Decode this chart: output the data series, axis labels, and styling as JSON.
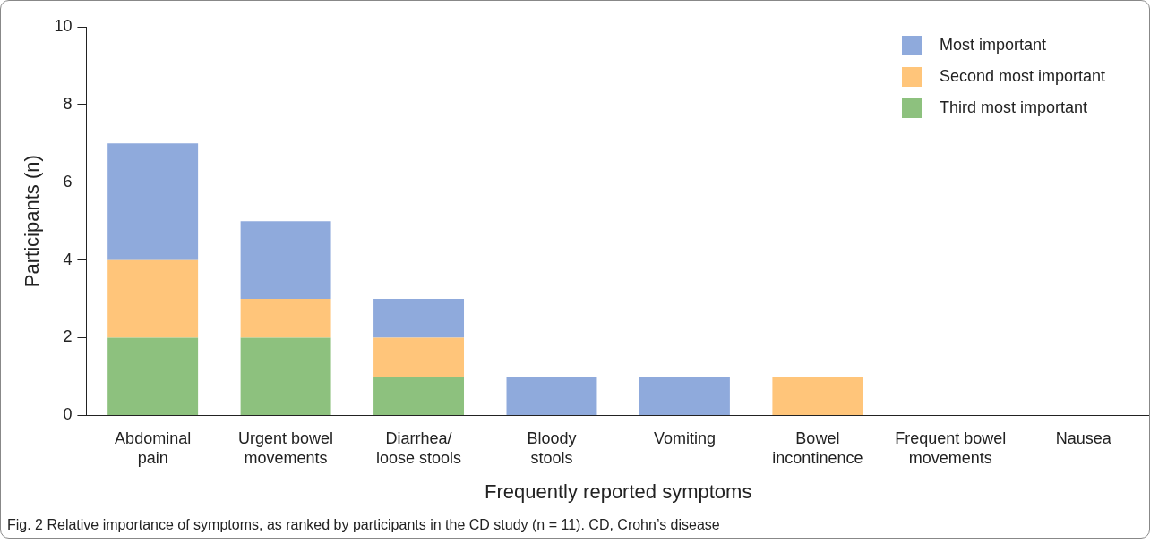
{
  "chart_data": {
    "type": "bar",
    "stacked": true,
    "xlabel": "Frequently reported symptoms",
    "ylabel": "Participants (n)",
    "categories": [
      "Abdominal\npain",
      "Urgent bowel\nmovements",
      "Diarrhea/\nloose stools",
      "Bloody\nstools",
      "Vomiting",
      "Bowel\nincontinence",
      "Frequent bowel\nmovements",
      "Nausea"
    ],
    "series": [
      {
        "name": "Third most important",
        "color": "#8dc17e",
        "values": [
          2,
          2,
          1,
          0,
          0,
          0,
          0,
          0
        ]
      },
      {
        "name": "Second most important",
        "color": "#ffc57a",
        "values": [
          2,
          1,
          1,
          0,
          0,
          1,
          0,
          0
        ]
      },
      {
        "name": "Most important",
        "color": "#8faadc",
        "values": [
          3,
          2,
          1,
          1,
          1,
          0,
          0,
          0
        ]
      }
    ],
    "ylim": [
      0,
      10
    ],
    "yticks": [
      0,
      2,
      4,
      6,
      8,
      10
    ],
    "grid": false,
    "legend": "top right",
    "annotations": [
      "Fig. 2  Relative importance of symptoms, as ranked by participants in the CD study (n = 11). CD, Crohn’s disease"
    ]
  }
}
